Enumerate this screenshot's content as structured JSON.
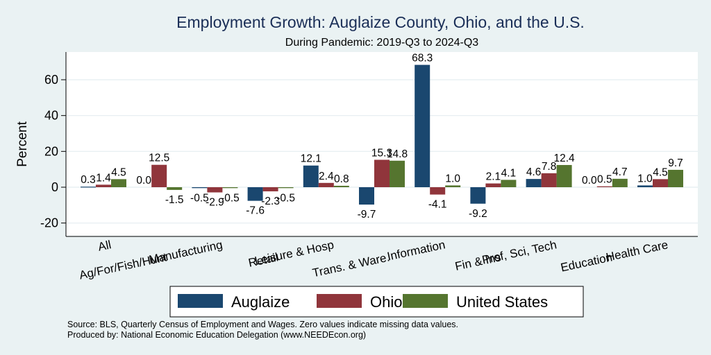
{
  "chart_data": {
    "type": "bar",
    "title": "Employment Growth: Auglaize County, Ohio, and the U.S.",
    "subtitle": "During Pandemic: 2019-Q3 to 2024-Q3",
    "xlabel": "",
    "ylabel": "Percent",
    "ylim": [
      -26,
      74
    ],
    "yticks": [
      -20,
      0,
      20,
      40,
      60
    ],
    "grid": true,
    "legend_position": "bottom",
    "categories": [
      "All",
      "Ag/For/Fish/Hunt",
      "Manufacturing",
      "Retail",
      "Leisure & Hosp",
      "Trans. & Ware.",
      "Information",
      "Fin & Ins",
      "Prof, Sci, Tech",
      "Education",
      "Health Care"
    ],
    "series": [
      {
        "name": "Auglaize",
        "color": "#1a476f",
        "values": [
          0.3,
          0.0,
          -0.5,
          -7.6,
          12.1,
          -9.7,
          68.3,
          -9.2,
          4.6,
          0.0,
          1.0
        ]
      },
      {
        "name": "Ohio",
        "color": "#90353b",
        "values": [
          1.4,
          12.5,
          -2.9,
          -2.3,
          2.4,
          15.3,
          -4.1,
          2.1,
          7.8,
          0.5,
          4.5
        ]
      },
      {
        "name": "United States",
        "color": "#55752f",
        "values": [
          4.5,
          -1.5,
          -0.5,
          -0.5,
          0.8,
          14.8,
          1.0,
          4.1,
          12.4,
          4.7,
          9.7
        ]
      }
    ],
    "notes": [
      "Source: BLS, Quarterly Census of Employment and Wages. Zero values indicate missing data values.",
      "Produced by: National Economic Education Delegation (www.NEEDEcon.org)"
    ]
  }
}
